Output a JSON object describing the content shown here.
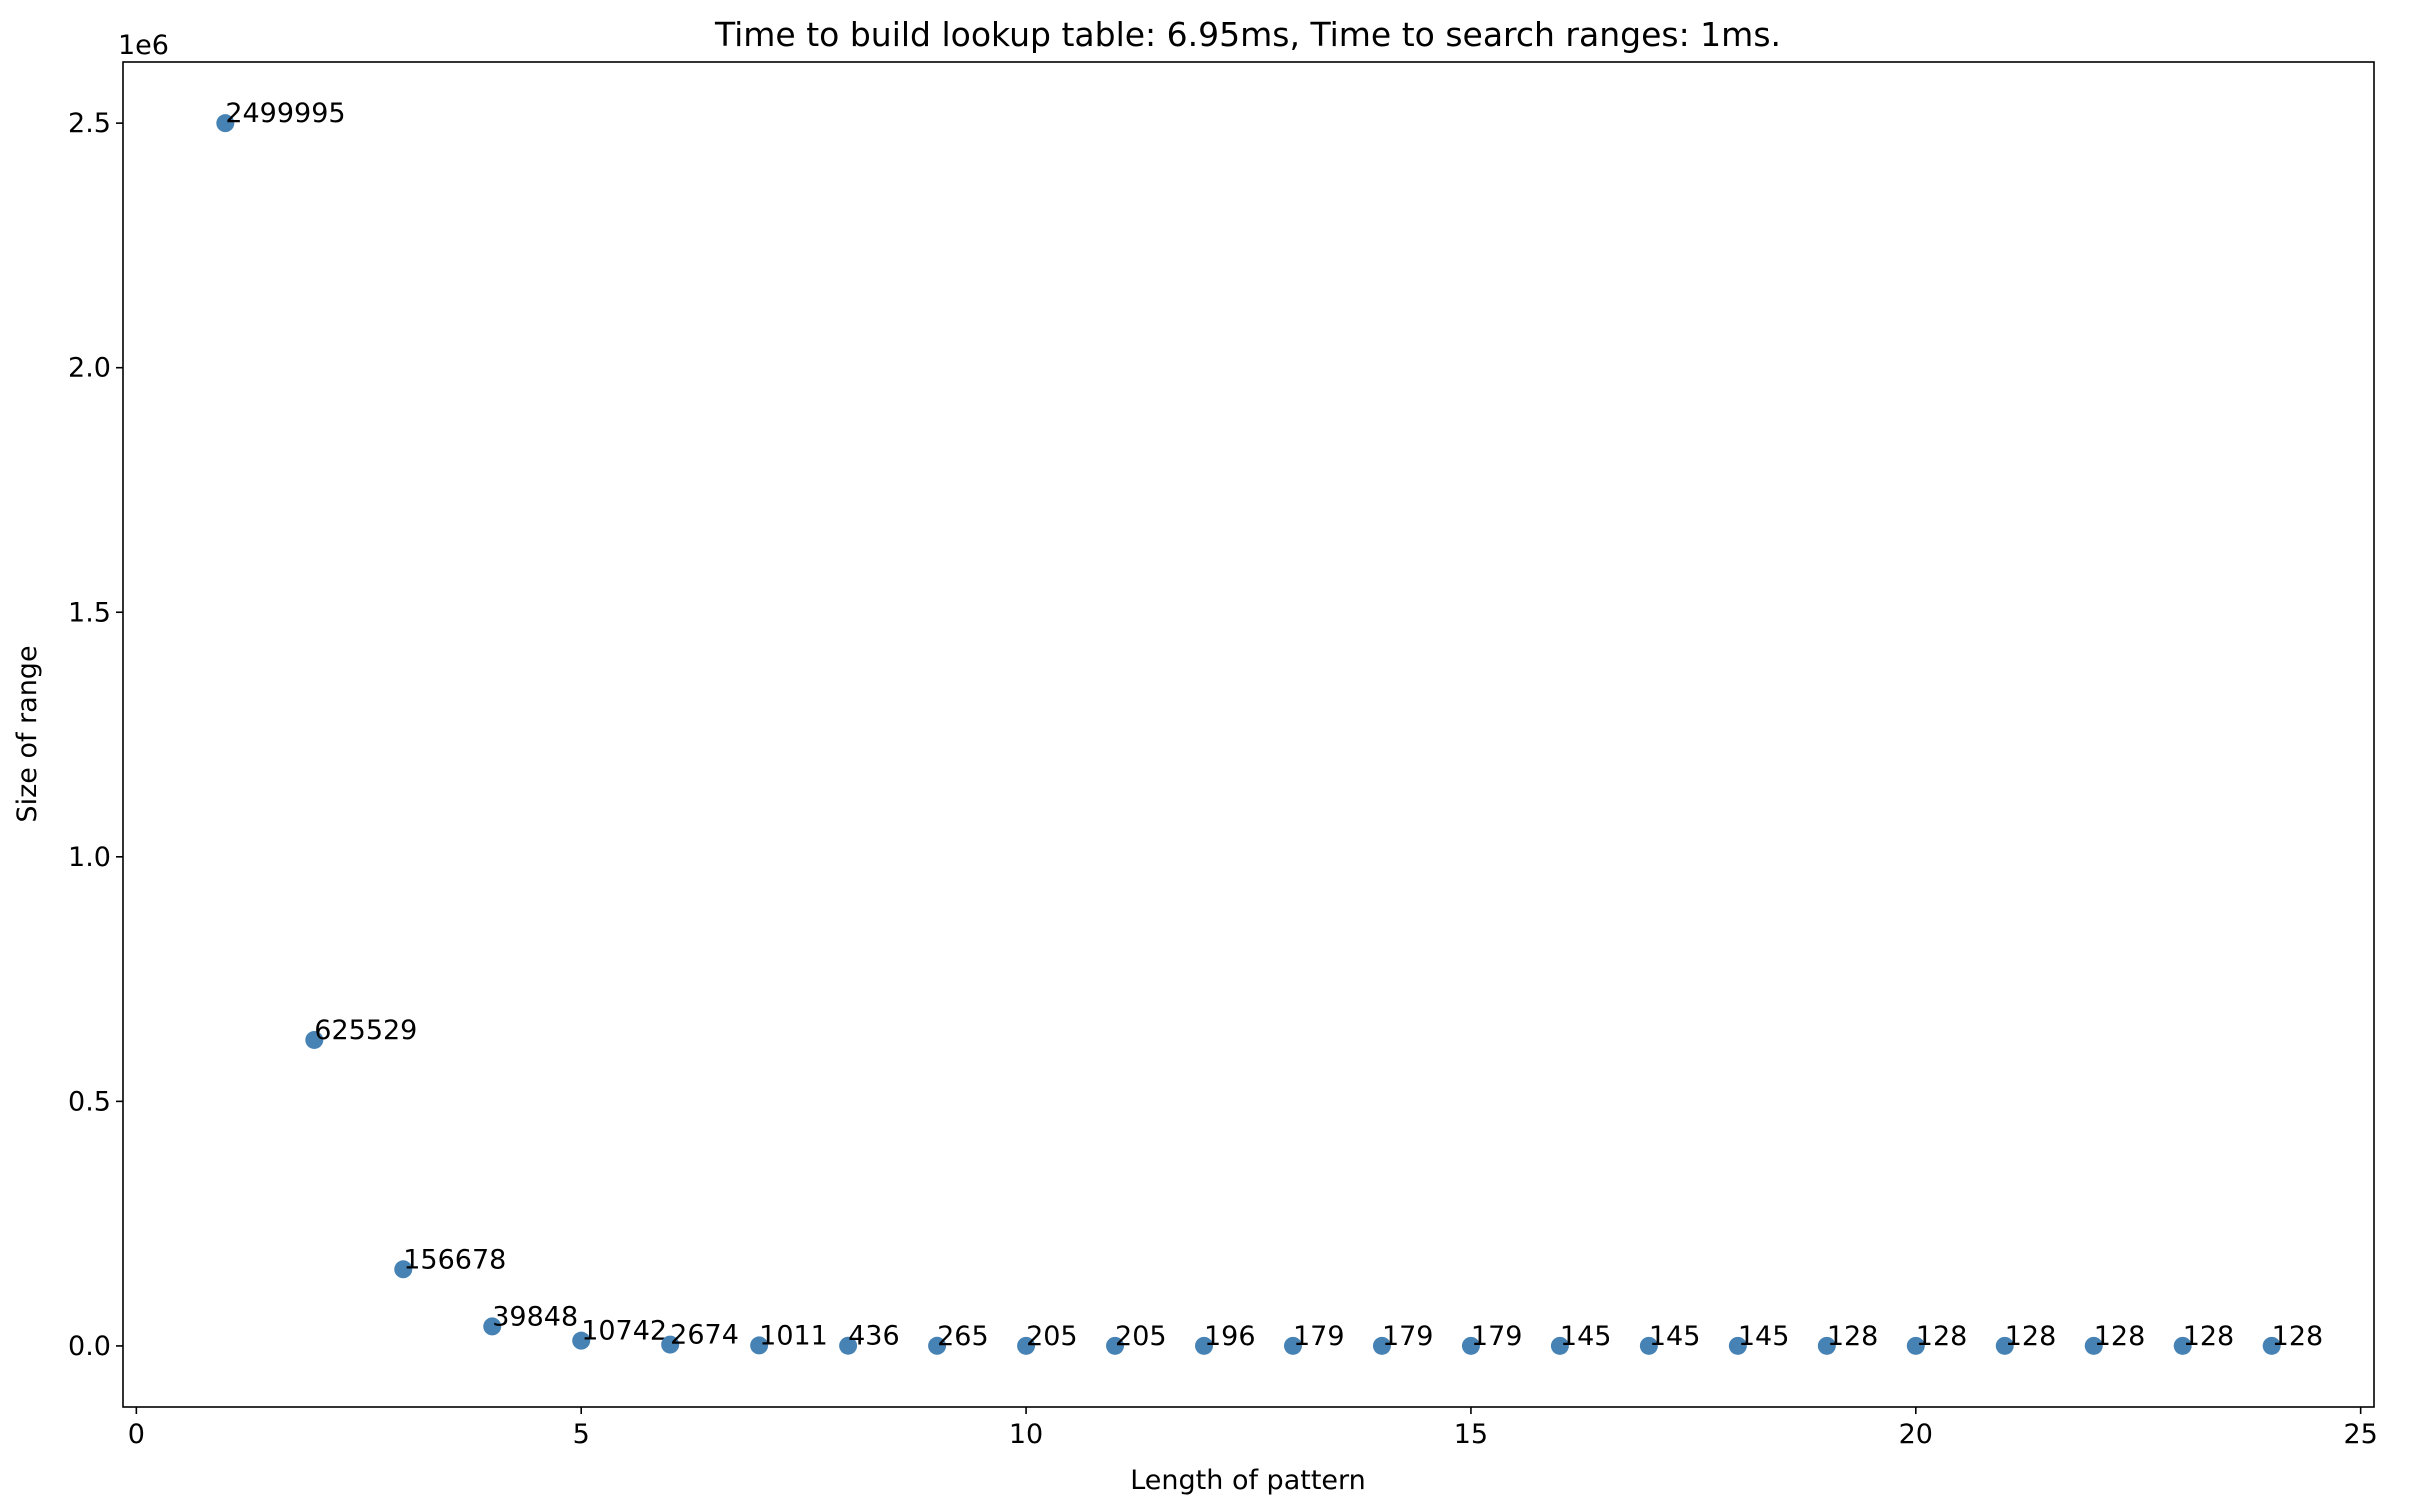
{
  "chart_data": {
    "type": "scatter",
    "title": "Time to build lookup table: 6.95ms, Time to search ranges: 1ms.",
    "xlabel": "Length of pattern",
    "ylabel": "Size of range",
    "y_offset_label": "1e6",
    "x": [
      1,
      2,
      3,
      4,
      5,
      6,
      7,
      8,
      9,
      10,
      11,
      12,
      13,
      14,
      15,
      16,
      17,
      18,
      19,
      20,
      21,
      22,
      23,
      24
    ],
    "values": [
      2499995,
      625529,
      156678,
      39848,
      10742,
      2674,
      1011,
      436,
      265,
      205,
      205,
      196,
      179,
      179,
      179,
      145,
      145,
      145,
      128,
      128,
      128,
      128,
      128,
      128
    ],
    "color": "#4682b4",
    "xlim": [
      -0.15,
      25.15
    ],
    "ylim": [
      -124865,
      2624988
    ],
    "xticks": [
      0,
      5,
      10,
      15,
      20,
      25
    ],
    "yticks": [
      {
        "value": 0,
        "label": "0.0"
      },
      {
        "value": 500000,
        "label": "0.5"
      },
      {
        "value": 1000000,
        "label": "1.0"
      },
      {
        "value": 1500000,
        "label": "1.5"
      },
      {
        "value": 2000000,
        "label": "2.0"
      },
      {
        "value": 2500000,
        "label": "2.5"
      }
    ],
    "grid": false
  }
}
